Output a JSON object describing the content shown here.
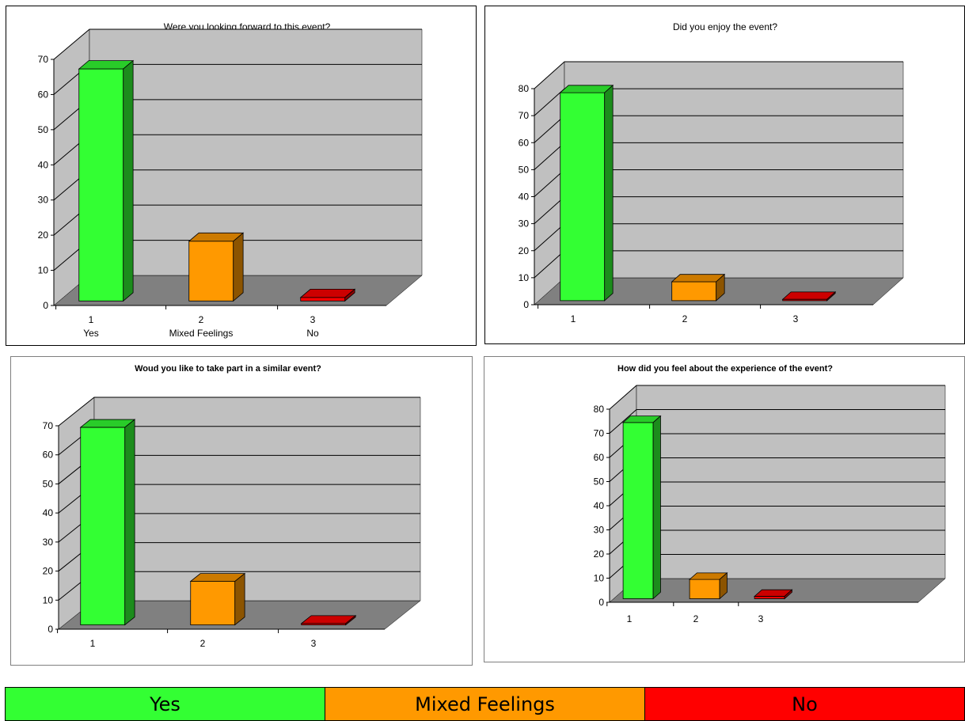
{
  "colors": {
    "yes": "#33ff33",
    "mixed": "#ff9900",
    "no": "#ff0000",
    "wall": "#c0c0c0",
    "floor": "#808080"
  },
  "chart_data": [
    {
      "type": "bar",
      "title": "Were you looking forward to this event?",
      "categories": [
        "1",
        "2",
        "3"
      ],
      "category_sublabels": [
        "Yes",
        "Mixed Feelings",
        "No"
      ],
      "values": [
        66,
        17,
        1
      ],
      "ylim": [
        0,
        70
      ],
      "yticks": [
        "0",
        "10",
        "20",
        "30",
        "40",
        "50",
        "60",
        "70"
      ],
      "grid": true,
      "bar_colors": [
        "yes",
        "mixed",
        "no"
      ]
    },
    {
      "type": "bar",
      "title": "Did you enjoy the event?",
      "categories": [
        "1",
        "2",
        "3"
      ],
      "values": [
        77,
        7,
        0.5
      ],
      "ylim": [
        0,
        80
      ],
      "yticks": [
        "0",
        "10",
        "20",
        "30",
        "40",
        "50",
        "60",
        "70",
        "80"
      ],
      "grid": true,
      "bar_colors": [
        "yes",
        "mixed",
        "no"
      ]
    },
    {
      "type": "bar",
      "title": "Woud you like to take part in a similar event?",
      "categories": [
        "1",
        "2",
        "3"
      ],
      "values": [
        68,
        15,
        0.5
      ],
      "ylim": [
        0,
        70
      ],
      "yticks": [
        "0",
        "10",
        "20",
        "30",
        "40",
        "50",
        "60",
        "70"
      ],
      "grid": true,
      "bar_colors": [
        "yes",
        "mixed",
        "no"
      ]
    },
    {
      "type": "bar",
      "title": "How did you feel about the experience of the event?",
      "categories": [
        "1",
        "2",
        "3"
      ],
      "values": [
        73,
        8,
        1
      ],
      "ylim": [
        0,
        80
      ],
      "yticks": [
        "0",
        "10",
        "20",
        "30",
        "40",
        "50",
        "60",
        "70",
        "80"
      ],
      "grid": true,
      "bar_colors": [
        "yes",
        "mixed",
        "no"
      ]
    }
  ],
  "legend": [
    {
      "label": "Yes",
      "color": "#33ff33"
    },
    {
      "label": "Mixed Feelings",
      "color": "#ff9900"
    },
    {
      "label": "No",
      "color": "#ff0000"
    }
  ]
}
